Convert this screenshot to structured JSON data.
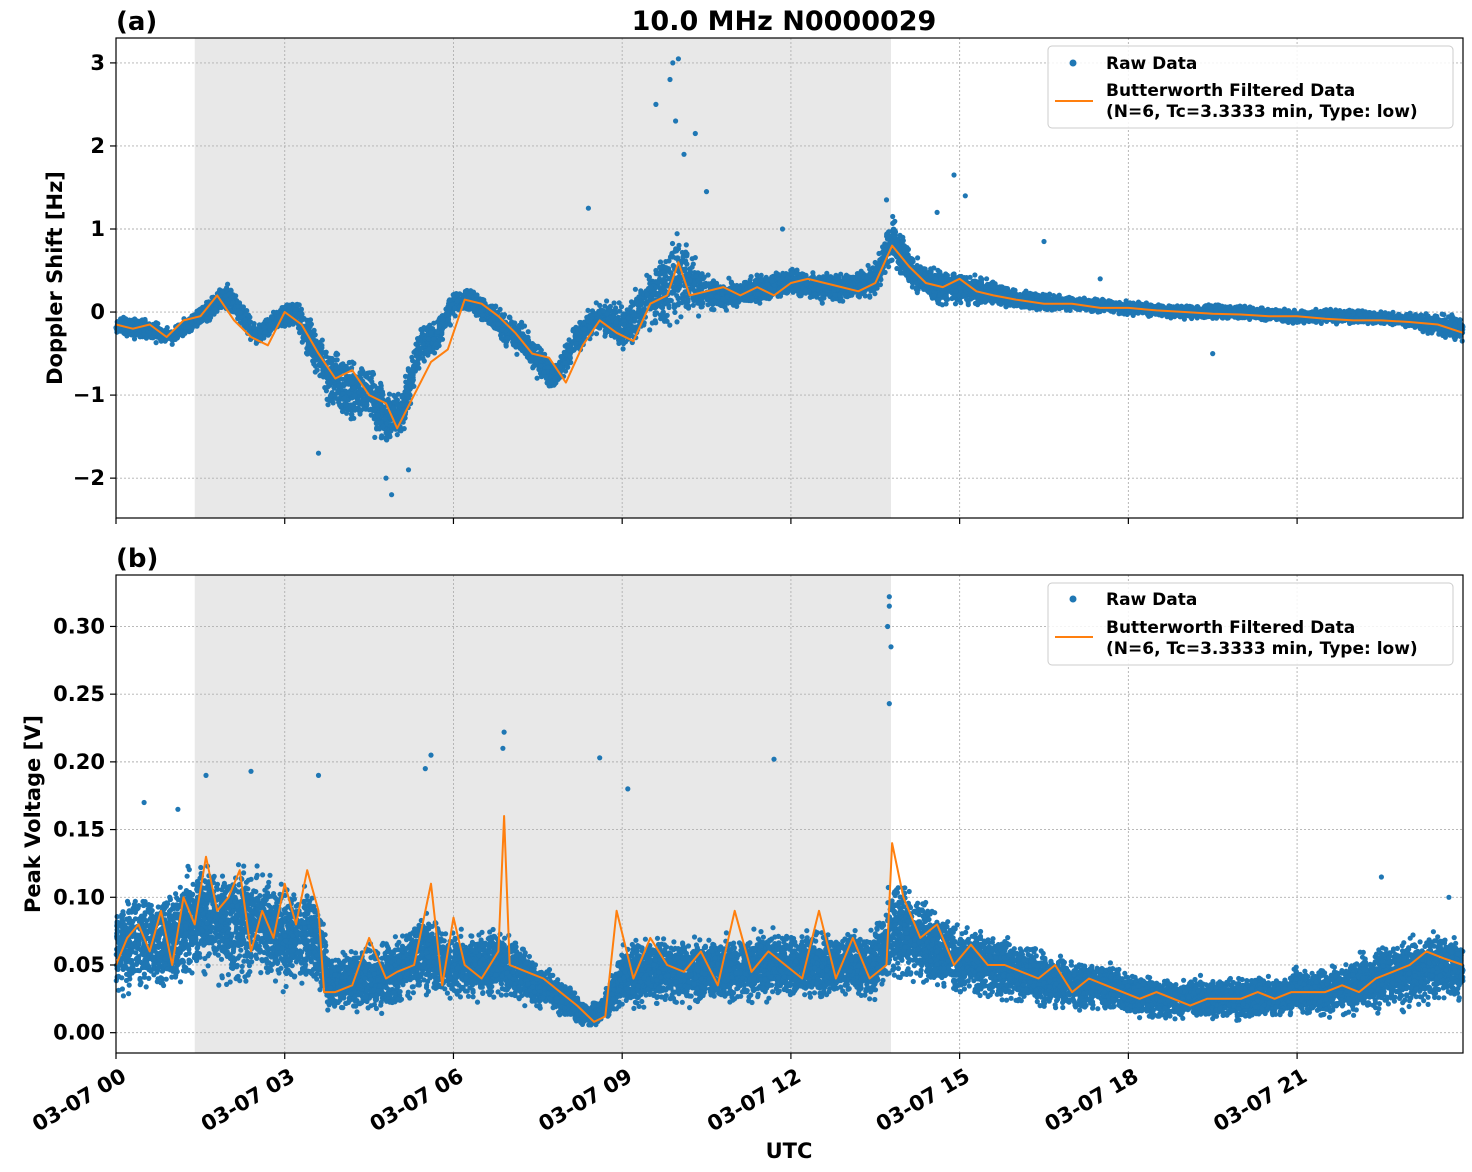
{
  "figure": {
    "title": "10.0 MHz N0000029",
    "xlabel": "UTC"
  },
  "chart_data": [
    {
      "type": "scatter",
      "panel_label": "(a)",
      "title": "10.0 MHz N0000029",
      "xlabel": "",
      "ylabel": "Doppler Shift [Hz]",
      "xlim_hours": [
        0,
        23.95
      ],
      "ylim": [
        -2.48,
        3.3
      ],
      "yticks": [
        -2,
        -1,
        0,
        1,
        2,
        3
      ],
      "ytick_labels": [
        "−2",
        "−1",
        "0",
        "1",
        "2",
        "3"
      ],
      "grid": true,
      "legend_position": "top-right",
      "shaded_interval_hours": [
        1.4,
        13.78
      ],
      "series": [
        {
          "name": "Raw Data",
          "style": "dots",
          "color": "#1f77b4",
          "x_hours": [
            0,
            0.5,
            1,
            1.4,
            1.7,
            2,
            2.5,
            2.9,
            3.2,
            3.5,
            3.8,
            4.1,
            4.5,
            4.8,
            5.1,
            5.4,
            5.7,
            6,
            6.3,
            6.6,
            6.9,
            7.2,
            7.5,
            7.8,
            8.2,
            8.6,
            9,
            9.4,
            9.8,
            10,
            10.3,
            10.6,
            11,
            11.5,
            12,
            12.5,
            13,
            13.5,
            13.8,
            14.2,
            14.6,
            15,
            15.5,
            16,
            17,
            18,
            19,
            20,
            21,
            22,
            23,
            23.95
          ],
          "center": [
            -0.15,
            -0.2,
            -0.3,
            -0.1,
            0.05,
            0.2,
            -0.3,
            -0.05,
            0,
            -0.4,
            -0.8,
            -0.9,
            -1.0,
            -1.3,
            -1.2,
            -0.4,
            -0.3,
            0.1,
            0.15,
            0,
            -0.2,
            -0.3,
            -0.6,
            -0.8,
            -0.3,
            -0.05,
            -0.2,
            0.1,
            0.35,
            0.45,
            0.3,
            0.2,
            0.2,
            0.3,
            0.35,
            0.3,
            0.3,
            0.4,
            0.85,
            0.45,
            0.3,
            0.3,
            0.25,
            0.15,
            0.1,
            0.05,
            0,
            0,
            -0.05,
            -0.05,
            -0.1,
            -0.2
          ],
          "spread": [
            0.15,
            0.15,
            0.12,
            0.15,
            0.15,
            0.2,
            0.15,
            0.15,
            0.2,
            0.35,
            0.5,
            0.45,
            0.45,
            0.45,
            0.4,
            0.3,
            0.25,
            0.2,
            0.2,
            0.2,
            0.25,
            0.25,
            0.25,
            0.2,
            0.25,
            0.25,
            0.35,
            0.4,
            0.6,
            0.7,
            0.45,
            0.25,
            0.2,
            0.2,
            0.2,
            0.2,
            0.2,
            0.25,
            0.35,
            0.25,
            0.25,
            0.25,
            0.2,
            0.15,
            0.1,
            0.1,
            0.1,
            0.1,
            0.1,
            0.1,
            0.1,
            0.2
          ],
          "outliers": [
            [
              9.9,
              3.0
            ],
            [
              10.0,
              3.05
            ],
            [
              9.85,
              2.8
            ],
            [
              9.6,
              2.5
            ],
            [
              10.3,
              2.15
            ],
            [
              9.95,
              2.3
            ],
            [
              10.1,
              1.9
            ],
            [
              10.5,
              1.45
            ],
            [
              8.4,
              1.25
            ],
            [
              14.9,
              1.65
            ],
            [
              15.1,
              1.4
            ],
            [
              14.6,
              1.2
            ],
            [
              13.7,
              1.35
            ],
            [
              11.85,
              1.0
            ],
            [
              16.5,
              0.85
            ],
            [
              17.5,
              0.4
            ],
            [
              19.5,
              -0.5
            ],
            [
              4.9,
              -2.2
            ],
            [
              4.8,
              -2.0
            ],
            [
              3.6,
              -1.7
            ],
            [
              5.2,
              -1.9
            ]
          ]
        },
        {
          "name": "Butterworth Filtered Data\n(N=6, Tc=3.3333 min, Type: low)",
          "style": "line",
          "color": "#ff7f0e",
          "x_hours": [
            0,
            0.3,
            0.6,
            0.9,
            1.2,
            1.5,
            1.8,
            2.1,
            2.4,
            2.7,
            3,
            3.3,
            3.6,
            3.9,
            4.2,
            4.5,
            4.8,
            5,
            5.3,
            5.6,
            5.9,
            6.2,
            6.5,
            6.8,
            7.1,
            7.4,
            7.7,
            8,
            8.3,
            8.6,
            8.9,
            9.2,
            9.5,
            9.8,
            10,
            10.2,
            10.5,
            10.8,
            11.1,
            11.4,
            11.7,
            12,
            12.3,
            12.6,
            12.9,
            13.2,
            13.5,
            13.8,
            14.1,
            14.4,
            14.7,
            15,
            15.3,
            15.6,
            16,
            16.5,
            17,
            17.5,
            18,
            18.5,
            19,
            19.5,
            20,
            20.5,
            21,
            21.5,
            22,
            22.5,
            23,
            23.5,
            23.95
          ],
          "y": [
            -0.15,
            -0.2,
            -0.15,
            -0.3,
            -0.1,
            -0.05,
            0.2,
            -0.1,
            -0.3,
            -0.4,
            0,
            -0.15,
            -0.5,
            -0.8,
            -0.7,
            -1.0,
            -1.1,
            -1.4,
            -1.0,
            -0.6,
            -0.45,
            0.15,
            0.1,
            -0.05,
            -0.25,
            -0.5,
            -0.55,
            -0.85,
            -0.4,
            -0.1,
            -0.25,
            -0.35,
            0.1,
            0.2,
            0.6,
            0.2,
            0.25,
            0.3,
            0.2,
            0.3,
            0.2,
            0.35,
            0.4,
            0.35,
            0.3,
            0.25,
            0.35,
            0.8,
            0.55,
            0.35,
            0.3,
            0.4,
            0.25,
            0.2,
            0.15,
            0.1,
            0.1,
            0.05,
            0.05,
            0.02,
            0,
            -0.02,
            -0.03,
            -0.05,
            -0.05,
            -0.08,
            -0.1,
            -0.1,
            -0.12,
            -0.15,
            -0.25
          ]
        }
      ]
    },
    {
      "type": "scatter",
      "panel_label": "(b)",
      "title": "",
      "xlabel": "UTC",
      "ylabel": "Peak Voltage [V]",
      "xlim_hours": [
        0,
        23.95
      ],
      "ylim": [
        -0.015,
        0.338
      ],
      "yticks": [
        0.0,
        0.05,
        0.1,
        0.15,
        0.2,
        0.25,
        0.3
      ],
      "ytick_labels": [
        "0.00",
        "0.05",
        "0.10",
        "0.15",
        "0.20",
        "0.25",
        "0.30"
      ],
      "grid": true,
      "legend_position": "top-right",
      "shaded_interval_hours": [
        1.4,
        13.78
      ],
      "series": [
        {
          "name": "Raw Data",
          "style": "dots",
          "color": "#1f77b4",
          "x_hours": [
            0,
            0.5,
            1,
            1.5,
            2,
            2.5,
            3,
            3.5,
            3.8,
            4.2,
            4.6,
            5,
            5.5,
            6,
            6.5,
            7,
            7.5,
            8,
            8.3,
            8.6,
            9,
            9.5,
            10,
            10.5,
            11,
            11.5,
            12,
            12.5,
            13,
            13.5,
            13.8,
            14.2,
            14.6,
            15,
            15.5,
            16,
            16.5,
            17,
            17.5,
            18,
            18.5,
            19,
            19.5,
            20,
            20.5,
            21,
            21.5,
            22,
            22.5,
            23,
            23.5,
            23.95
          ],
          "center": [
            0.06,
            0.07,
            0.065,
            0.09,
            0.08,
            0.085,
            0.07,
            0.075,
            0.035,
            0.04,
            0.04,
            0.045,
            0.06,
            0.05,
            0.05,
            0.05,
            0.035,
            0.025,
            0.012,
            0.015,
            0.04,
            0.045,
            0.045,
            0.045,
            0.045,
            0.05,
            0.05,
            0.05,
            0.05,
            0.05,
            0.08,
            0.07,
            0.06,
            0.055,
            0.05,
            0.045,
            0.04,
            0.035,
            0.035,
            0.03,
            0.025,
            0.025,
            0.025,
            0.025,
            0.025,
            0.03,
            0.03,
            0.035,
            0.04,
            0.045,
            0.05,
            0.045
          ],
          "spread": [
            0.04,
            0.045,
            0.04,
            0.05,
            0.05,
            0.05,
            0.045,
            0.045,
            0.025,
            0.025,
            0.03,
            0.03,
            0.035,
            0.03,
            0.03,
            0.03,
            0.02,
            0.015,
            0.01,
            0.01,
            0.03,
            0.03,
            0.03,
            0.03,
            0.03,
            0.03,
            0.03,
            0.03,
            0.03,
            0.035,
            0.045,
            0.04,
            0.035,
            0.03,
            0.03,
            0.028,
            0.025,
            0.022,
            0.02,
            0.02,
            0.018,
            0.018,
            0.018,
            0.018,
            0.018,
            0.02,
            0.02,
            0.025,
            0.028,
            0.03,
            0.03,
            0.03
          ],
          "outliers": [
            [
              13.75,
              0.322
            ],
            [
              13.75,
              0.315
            ],
            [
              13.72,
              0.3
            ],
            [
              13.78,
              0.285
            ],
            [
              13.75,
              0.243
            ],
            [
              6.9,
              0.222
            ],
            [
              6.88,
              0.21
            ],
            [
              5.6,
              0.205
            ],
            [
              8.6,
              0.203
            ],
            [
              11.7,
              0.202
            ],
            [
              9.1,
              0.18
            ],
            [
              2.4,
              0.193
            ],
            [
              1.6,
              0.19
            ],
            [
              3.6,
              0.19
            ],
            [
              0.5,
              0.17
            ],
            [
              1.1,
              0.165
            ],
            [
              5.5,
              0.195
            ],
            [
              22.5,
              0.115
            ],
            [
              23.7,
              0.1
            ]
          ]
        },
        {
          "name": "Butterworth Filtered Data\n(N=6, Tc=3.3333 min, Type: low)",
          "style": "line",
          "color": "#ff7f0e",
          "x_hours": [
            0,
            0.2,
            0.4,
            0.6,
            0.8,
            1,
            1.2,
            1.4,
            1.6,
            1.8,
            2,
            2.2,
            2.4,
            2.6,
            2.8,
            3,
            3.2,
            3.4,
            3.6,
            3.7,
            3.9,
            4.2,
            4.5,
            4.8,
            5,
            5.3,
            5.6,
            5.8,
            6,
            6.2,
            6.5,
            6.8,
            6.9,
            7,
            7.3,
            7.6,
            7.9,
            8.2,
            8.5,
            8.7,
            8.9,
            9.2,
            9.5,
            9.8,
            10.1,
            10.4,
            10.7,
            11,
            11.3,
            11.6,
            11.9,
            12.2,
            12.5,
            12.8,
            13.1,
            13.4,
            13.7,
            13.8,
            14,
            14.3,
            14.6,
            14.9,
            15.2,
            15.5,
            15.8,
            16.1,
            16.4,
            16.7,
            17,
            17.3,
            17.6,
            17.9,
            18.2,
            18.5,
            18.8,
            19.1,
            19.4,
            19.7,
            20,
            20.3,
            20.6,
            20.9,
            21.2,
            21.5,
            21.8,
            22.1,
            22.4,
            22.7,
            23,
            23.3,
            23.6,
            23.95
          ],
          "y": [
            0.05,
            0.07,
            0.08,
            0.06,
            0.09,
            0.05,
            0.1,
            0.08,
            0.13,
            0.09,
            0.1,
            0.12,
            0.06,
            0.09,
            0.07,
            0.11,
            0.08,
            0.12,
            0.09,
            0.03,
            0.03,
            0.035,
            0.07,
            0.04,
            0.045,
            0.05,
            0.11,
            0.035,
            0.085,
            0.05,
            0.04,
            0.06,
            0.16,
            0.05,
            0.045,
            0.04,
            0.03,
            0.02,
            0.008,
            0.012,
            0.09,
            0.04,
            0.07,
            0.05,
            0.045,
            0.06,
            0.035,
            0.09,
            0.045,
            0.06,
            0.05,
            0.04,
            0.09,
            0.04,
            0.07,
            0.04,
            0.05,
            0.14,
            0.1,
            0.07,
            0.08,
            0.05,
            0.065,
            0.05,
            0.05,
            0.045,
            0.04,
            0.05,
            0.03,
            0.04,
            0.035,
            0.03,
            0.025,
            0.03,
            0.025,
            0.02,
            0.025,
            0.025,
            0.025,
            0.03,
            0.025,
            0.03,
            0.03,
            0.03,
            0.035,
            0.03,
            0.04,
            0.045,
            0.05,
            0.06,
            0.055,
            0.05
          ]
        }
      ]
    }
  ],
  "xticks": {
    "hours": [
      0,
      3,
      6,
      9,
      12,
      15,
      18,
      21
    ],
    "labels": [
      "03-07 00",
      "03-07 03",
      "03-07 06",
      "03-07 09",
      "03-07 12",
      "03-07 15",
      "03-07 18",
      "03-07 21"
    ]
  },
  "legend": {
    "raw_label": "Raw Data",
    "filtered_line1": "Butterworth Filtered Data",
    "filtered_line2": "(N=6, Tc=3.3333 min, Type: low)"
  },
  "colors": {
    "raw": "#1f77b4",
    "filtered": "#ff7f0e",
    "shade": "#e8e8e8",
    "grid": "#b0b0b0"
  }
}
